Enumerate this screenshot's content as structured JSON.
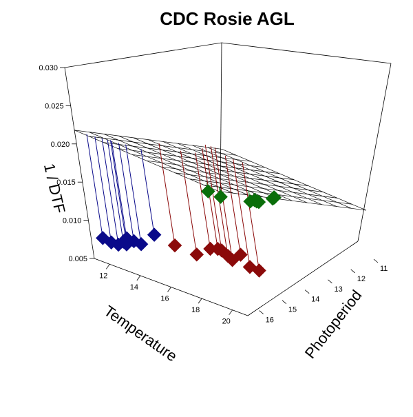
{
  "chart_data": {
    "type": "scatter",
    "subtype": "3d-scatter-with-regression-plane",
    "title": "CDC Rosie AGL",
    "xlabel": "Temperature",
    "ylabel": "Photoperiod",
    "zlabel": "1 / DTF",
    "xlim": [
      11,
      21
    ],
    "ylim": [
      11,
      16.5
    ],
    "zlim": [
      0.005,
      0.03
    ],
    "x_ticks": [
      "12",
      "14",
      "16",
      "18",
      "20"
    ],
    "y_ticks": [
      "11",
      "12",
      "13",
      "14",
      "15",
      "16"
    ],
    "z_ticks": [
      "0.005",
      "0.010",
      "0.015",
      "0.020",
      "0.025",
      "0.030"
    ],
    "plane": {
      "formula": "z = a + b*Temperature + c*Photoperiod",
      "a": -0.0299,
      "b": 0.0005,
      "c": 0.0028,
      "grid": 10
    },
    "series": [
      {
        "color": "#0a0a8a",
        "points": [
          {
            "x": 11.3,
            "y": 16.2,
            "z": 0.0075
          },
          {
            "x": 11.5,
            "y": 16.0,
            "z": 0.0068
          },
          {
            "x": 11.8,
            "y": 15.9,
            "z": 0.0066
          },
          {
            "x": 12.0,
            "y": 15.8,
            "z": 0.007
          },
          {
            "x": 12.1,
            "y": 15.7,
            "z": 0.0074
          },
          {
            "x": 12.2,
            "y": 15.8,
            "z": 0.0068
          },
          {
            "x": 12.4,
            "y": 15.6,
            "z": 0.0071
          },
          {
            "x": 12.7,
            "y": 15.5,
            "z": 0.0068
          },
          {
            "x": 13.2,
            "y": 15.2,
            "z": 0.008
          }
        ]
      },
      {
        "color": "#8b0a0a",
        "points": [
          {
            "x": 16.2,
            "y": 16.2,
            "z": 0.0102
          },
          {
            "x": 16.6,
            "y": 15.6,
            "z": 0.0085
          },
          {
            "x": 17.6,
            "y": 15.6,
            "z": 0.01
          },
          {
            "x": 19.3,
            "y": 16.3,
            "z": 0.0122
          },
          {
            "x": 19.8,
            "y": 15.7,
            "z": 0.011
          },
          {
            "x": 19.8,
            "y": 15.4,
            "z": 0.009
          },
          {
            "x": 19.9,
            "y": 15.1,
            "z": 0.0082
          },
          {
            "x": 20.4,
            "y": 16.8,
            "z": 0.0135
          },
          {
            "x": 20.6,
            "y": 16.7,
            "z": 0.0128
          },
          {
            "x": 20.7,
            "y": 16.6,
            "z": 0.0122
          }
        ]
      },
      {
        "color": "#0a6e0a",
        "points": [
          {
            "x": 11.8,
            "y": 11.9,
            "z": 0.0082
          },
          {
            "x": 12.1,
            "y": 11.6,
            "z": 0.0073
          },
          {
            "x": 13.9,
            "y": 11.3,
            "z": 0.0078
          },
          {
            "x": 14.1,
            "y": 11.6,
            "z": 0.0082
          },
          {
            "x": 14.2,
            "y": 11.4,
            "z": 0.008
          },
          {
            "x": 14.0,
            "y": 11.2,
            "z": 0.0075
          },
          {
            "x": 15.0,
            "y": 11.2,
            "z": 0.0087
          },
          {
            "x": 15.3,
            "y": 11.3,
            "z": 0.0092
          },
          {
            "x": 15.6,
            "y": 11.5,
            "z": 0.0097
          }
        ]
      }
    ]
  }
}
